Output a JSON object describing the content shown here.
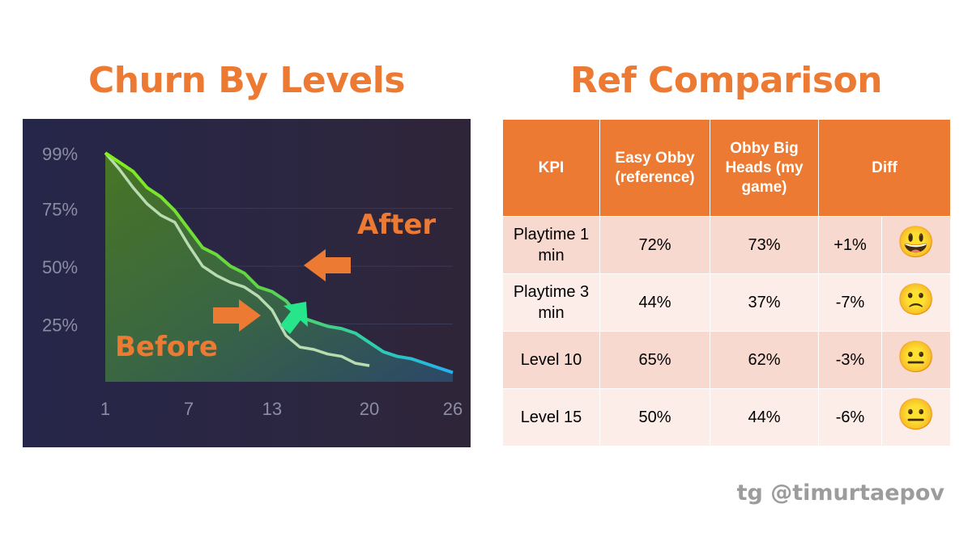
{
  "left_title": "Churn By Levels",
  "right_title": "Ref Comparison",
  "watermark": "tg @timurtaepov",
  "colors": {
    "accent_orange": "#ec7a33",
    "panel_bg": "#28263f",
    "after_line_start": "#7ee619",
    "after_line_end": "#27aef0",
    "before_line": "#b8dcb0",
    "green_arrow": "#27e58a",
    "table_header": "#ec7a33",
    "row_dark": "#f8d9cf",
    "row_light": "#fcede8"
  },
  "chart_data": {
    "type": "line",
    "title": "Churn By Levels",
    "xlabel": "",
    "ylabel": "",
    "x_ticks": [
      "1",
      "7",
      "13",
      "20",
      "26"
    ],
    "y_ticks": [
      "99%",
      "75%",
      "50%",
      "25%"
    ],
    "xlim": [
      1,
      26
    ],
    "ylim": [
      0,
      99
    ],
    "grid": true,
    "series": [
      {
        "name": "After",
        "x": [
          1,
          2,
          3,
          4,
          5,
          6,
          7,
          8,
          9,
          10,
          11,
          12,
          13,
          14,
          15,
          16,
          17,
          18,
          19,
          20,
          21,
          22,
          23,
          24,
          25,
          26
        ],
        "values": [
          99,
          95,
          91,
          84,
          80,
          74,
          66,
          58,
          55,
          50,
          47,
          41,
          39,
          35,
          28,
          26,
          24,
          23,
          21,
          17,
          13,
          11,
          10,
          8,
          6,
          4
        ]
      },
      {
        "name": "Before",
        "x": [
          1,
          2,
          3,
          4,
          5,
          6,
          7,
          8,
          9,
          10,
          11,
          12,
          13,
          14,
          15,
          16,
          17,
          18,
          19,
          20
        ],
        "values": [
          99,
          92,
          84,
          77,
          72,
          69,
          59,
          50,
          46,
          43,
          41,
          37,
          31,
          20,
          15,
          14,
          12,
          11,
          8,
          7
        ]
      }
    ],
    "annotations": [
      "After",
      "Before"
    ]
  },
  "table": {
    "headers": [
      "KPI",
      "Easy Obby (reference)",
      "Obby Big Heads (my game)",
      "Diff"
    ],
    "rows": [
      {
        "kpi": "Playtime 1 min",
        "reference": "72%",
        "my_game": "73%",
        "diff": "+1%",
        "emoji": "😃",
        "emoji_name": "grinning-face-icon"
      },
      {
        "kpi": "Playtime 3 min",
        "reference": "44%",
        "my_game": "37%",
        "diff": "-7%",
        "emoji": "🙁",
        "emoji_name": "frowning-face-icon"
      },
      {
        "kpi": "Level 10",
        "reference": "65%",
        "my_game": "62%",
        "diff": "-3%",
        "emoji": "😐",
        "emoji_name": "neutral-face-icon"
      },
      {
        "kpi": "Level 15",
        "reference": "50%",
        "my_game": "44%",
        "diff": "-6%",
        "emoji": "😐",
        "emoji_name": "neutral-face-icon"
      }
    ]
  }
}
